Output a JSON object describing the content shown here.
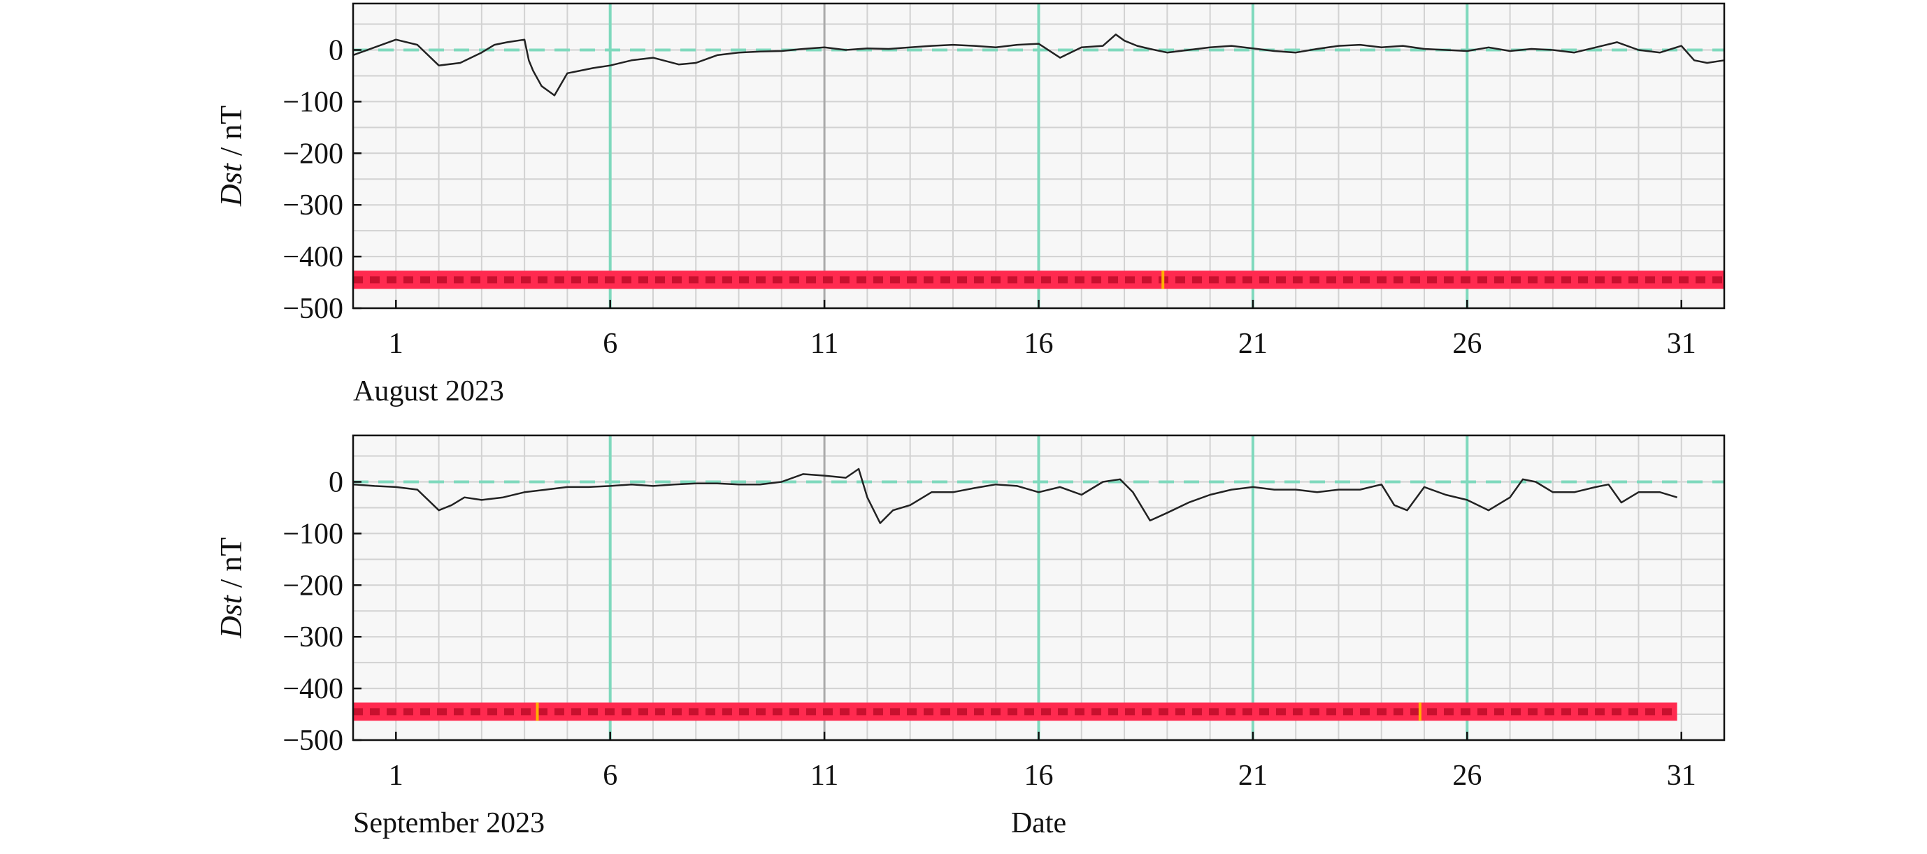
{
  "colors": {
    "background": "#ffffff",
    "plot_background": "#f7f7f7",
    "grid_minor": "#d2d2d2",
    "grid_major": "#aaaaaa",
    "green_marker": "#7fd9bd",
    "zero_dash": "#7fd9bd",
    "series_line": "#222222",
    "band_red": "#ff2a4f",
    "band_dark": "#c8102e",
    "band_orange": "#ffb000"
  },
  "chart_data": [
    {
      "type": "line",
      "ylabel_italic": "Dst",
      "ylabel_rest": " / nT",
      "xlabel": "",
      "month_label": "August 2023",
      "ylim": [
        -500,
        90
      ],
      "yticks": [
        0,
        -100,
        -200,
        -300,
        -400,
        -500
      ],
      "ytick_labels": [
        "0",
        "−100",
        "−200",
        "−300",
        "−400",
        "−500"
      ],
      "xlim": [
        0.0,
        32.0
      ],
      "xticks": [
        1,
        6,
        11,
        16,
        21,
        26,
        31
      ],
      "xtick_labels": [
        "1",
        "6",
        "11",
        "16",
        "21",
        "26",
        "31"
      ],
      "major_gridlines_x": [
        11
      ],
      "green_verticals_x": [
        6,
        16,
        21,
        26
      ],
      "zero_reference_dashed": true,
      "grid": true,
      "band": {
        "y": -445,
        "x_start": 0.0,
        "x_end": 32.0,
        "orange_markers_x": [
          18.9
        ]
      },
      "series": [
        {
          "x": [
            0.0,
            0.5,
            1.0,
            1.5,
            2.0,
            2.5,
            3.0,
            3.3,
            3.6,
            4.0,
            4.1,
            4.2,
            4.4,
            4.7,
            5.0,
            5.3,
            5.6,
            6.0,
            6.5,
            7.0,
            7.6,
            8.0,
            8.5,
            9.0,
            9.5,
            10.0,
            10.5,
            11.0,
            11.5,
            12.0,
            12.5,
            13.0,
            13.5,
            14.0,
            14.5,
            15.0,
            15.5,
            16.0,
            16.5,
            17.0,
            17.5,
            17.8,
            18.0,
            18.3,
            18.6,
            19.0,
            19.5,
            20.0,
            20.5,
            21.0,
            21.5,
            22.0,
            22.5,
            23.0,
            23.5,
            24.0,
            24.5,
            25.0,
            25.5,
            26.0,
            26.5,
            27.0,
            27.5,
            28.0,
            28.5,
            29.0,
            29.5,
            30.0,
            30.5,
            31.0,
            31.3,
            31.6,
            32.0
          ],
          "y": [
            -10,
            5,
            20,
            10,
            -30,
            -25,
            -5,
            10,
            15,
            20,
            -20,
            -40,
            -70,
            -88,
            -45,
            -40,
            -35,
            -30,
            -20,
            -15,
            -28,
            -25,
            -10,
            -5,
            -3,
            -2,
            2,
            5,
            0,
            3,
            2,
            5,
            8,
            10,
            8,
            5,
            10,
            12,
            -15,
            5,
            8,
            30,
            18,
            8,
            2,
            -5,
            0,
            5,
            8,
            3,
            -2,
            -5,
            2,
            8,
            10,
            5,
            8,
            2,
            0,
            -2,
            5,
            -2,
            2,
            0,
            -5,
            5,
            15,
            0,
            -5,
            8,
            -20,
            -25,
            -20
          ]
        }
      ]
    },
    {
      "type": "line",
      "ylabel_italic": "Dst",
      "ylabel_rest": " / nT",
      "xlabel": "Date",
      "month_label": "September 2023",
      "ylim": [
        -500,
        90
      ],
      "yticks": [
        0,
        -100,
        -200,
        -300,
        -400,
        -500
      ],
      "ytick_labels": [
        "0",
        "−100",
        "−200",
        "−300",
        "−400",
        "−500"
      ],
      "xlim": [
        0.0,
        32.0
      ],
      "xticks": [
        1,
        6,
        11,
        16,
        21,
        26,
        31
      ],
      "xtick_labels": [
        "1",
        "6",
        "11",
        "16",
        "21",
        "26",
        "31"
      ],
      "major_gridlines_x": [
        11
      ],
      "green_verticals_x": [
        6,
        16,
        21,
        26
      ],
      "zero_reference_dashed": true,
      "grid": true,
      "band": {
        "y": -445,
        "x_start": 0.0,
        "x_end": 30.9,
        "orange_markers_x": [
          4.3,
          24.9
        ]
      },
      "series": [
        {
          "x": [
            0.0,
            0.5,
            1.0,
            1.5,
            2.0,
            2.3,
            2.6,
            3.0,
            3.5,
            4.0,
            4.5,
            5.0,
            5.5,
            6.0,
            6.5,
            7.0,
            7.5,
            8.0,
            8.5,
            9.0,
            9.5,
            10.0,
            10.5,
            11.0,
            11.5,
            11.8,
            12.0,
            12.3,
            12.6,
            13.0,
            13.5,
            14.0,
            14.5,
            15.0,
            15.5,
            16.0,
            16.5,
            17.0,
            17.5,
            17.9,
            18.2,
            18.6,
            19.0,
            19.5,
            20.0,
            20.5,
            21.0,
            21.5,
            22.0,
            22.5,
            23.0,
            23.5,
            24.0,
            24.3,
            24.6,
            25.0,
            25.5,
            26.0,
            26.5,
            27.0,
            27.3,
            27.6,
            28.0,
            28.5,
            29.0,
            29.3,
            29.6,
            30.0,
            30.5,
            30.9
          ],
          "y": [
            -5,
            -8,
            -10,
            -15,
            -55,
            -45,
            -30,
            -35,
            -30,
            -20,
            -15,
            -10,
            -10,
            -8,
            -5,
            -8,
            -5,
            -3,
            -3,
            -5,
            -5,
            0,
            15,
            12,
            8,
            25,
            -30,
            -80,
            -55,
            -45,
            -20,
            -20,
            -12,
            -5,
            -8,
            -20,
            -10,
            -25,
            0,
            5,
            -20,
            -75,
            -60,
            -40,
            -25,
            -15,
            -10,
            -15,
            -15,
            -20,
            -15,
            -15,
            -5,
            -45,
            -55,
            -10,
            -25,
            -35,
            -55,
            -30,
            5,
            0,
            -20,
            -20,
            -10,
            -5,
            -40,
            -20,
            -20,
            -30
          ]
        }
      ]
    }
  ]
}
